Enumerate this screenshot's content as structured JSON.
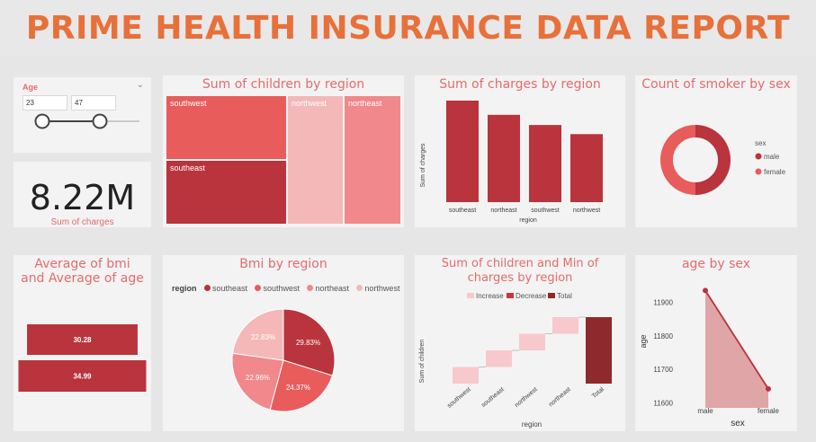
{
  "header": {
    "title": "PRIME HEALTH INSURANCE DATA REPORT"
  },
  "colors": {
    "title": "#e8703a",
    "primary": "#b9343c",
    "light": "#f4b8b8",
    "accent": "#e46b6b"
  },
  "slicer": {
    "label": "Age",
    "min": "23",
    "max": "47",
    "icon": "chevron-down-icon"
  },
  "kpi": {
    "value": "8.22M",
    "label": "Sum of charges"
  },
  "treemap": {
    "title": "Sum of children by region",
    "cells": [
      {
        "label": "southwest",
        "value": 1
      },
      {
        "label": "southeast",
        "value": 1
      },
      {
        "label": "northwest",
        "value": 1
      },
      {
        "label": "northeast",
        "value": 1
      }
    ]
  },
  "charges_region": {
    "title": "Sum of charges by region",
    "ylabel": "Sum of charges",
    "xlabel": "region"
  },
  "smoker_sex": {
    "title": "Count of smoker by sex",
    "legend_title": "sex",
    "legend": [
      "male",
      "female"
    ]
  },
  "avg_card": {
    "title": "Average of bmi and Average of age"
  },
  "bmi_region": {
    "title": "Bmi by region",
    "legend_title": "region",
    "legend": [
      "southeast",
      "southwest",
      "northeast",
      "northwest"
    ]
  },
  "waterfall": {
    "title": "Sum of children and Min of charges by region",
    "ylabel": "Sum of children",
    "xlabel": "region",
    "legend": [
      "Increase",
      "Decrease",
      "Total"
    ]
  },
  "age_sex": {
    "title": "age by sex",
    "xlabel": "sex",
    "ylabel": "age"
  },
  "chart_data": [
    {
      "type": "bar",
      "title": "Sum of charges by region",
      "xlabel": "region",
      "ylabel": "Sum of charges",
      "categories": [
        "southeast",
        "northeast",
        "southwest",
        "northwest"
      ],
      "values": [
        1.0,
        0.86,
        0.76,
        0.67
      ]
    },
    {
      "type": "pie",
      "title": "Count of smoker by sex",
      "categories": [
        "male",
        "female"
      ],
      "values": [
        50,
        50
      ]
    },
    {
      "type": "bar",
      "title": "Average of bmi and Average of age",
      "categories": [
        "Average of bmi",
        "Average of age"
      ],
      "values": [
        30.28,
        34.99
      ],
      "labels": [
        "30.28",
        "34.99"
      ]
    },
    {
      "type": "pie",
      "title": "Bmi by region",
      "categories": [
        "southeast",
        "southwest",
        "northeast",
        "northwest"
      ],
      "values": [
        29.83,
        24.37,
        22.96,
        22.83
      ],
      "labels": [
        "29.83%",
        "24.37%",
        "22.96%",
        "22.83%"
      ]
    },
    {
      "type": "bar",
      "title": "Sum of children and Min of charges by region",
      "xlabel": "region",
      "ylabel": "Sum of children",
      "categories": [
        "southwest",
        "southeast",
        "northwest",
        "northeast",
        "Total"
      ],
      "values": [
        1,
        1,
        1,
        1,
        4
      ]
    },
    {
      "type": "area",
      "title": "age by sex",
      "xlabel": "sex",
      "ylabel": "age",
      "categories": [
        "male",
        "female"
      ],
      "values": [
        11935,
        11642
      ],
      "yticks": [
        "11600",
        "11700",
        "11800",
        "11900"
      ],
      "ylim": [
        11580,
        11960
      ]
    }
  ]
}
